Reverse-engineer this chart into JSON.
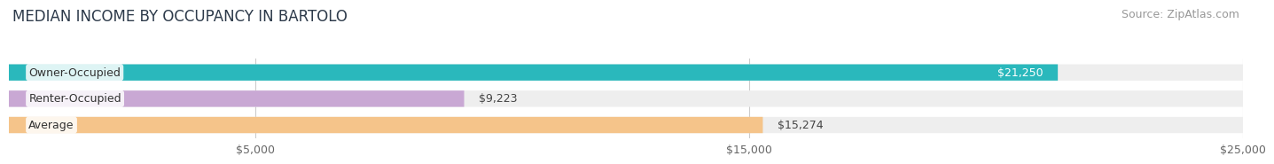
{
  "title": "MEDIAN INCOME BY OCCUPANCY IN BARTOLO",
  "source": "Source: ZipAtlas.com",
  "categories": [
    "Owner-Occupied",
    "Renter-Occupied",
    "Average"
  ],
  "values": [
    21250,
    9223,
    15274
  ],
  "bar_colors": [
    "#2ab8bc",
    "#c9a8d4",
    "#f5c48a"
  ],
  "bar_bg_color": "#eeeeee",
  "value_labels": [
    "$21,250",
    "$9,223",
    "$15,274"
  ],
  "value_label_inside": [
    true,
    false,
    false
  ],
  "xlim": [
    0,
    25000
  ],
  "xticks": [
    5000,
    15000,
    25000
  ],
  "xtick_labels": [
    "$5,000",
    "$15,000",
    "$25,000"
  ],
  "title_fontsize": 12,
  "source_fontsize": 9,
  "label_fontsize": 9,
  "value_fontsize": 9,
  "tick_fontsize": 9,
  "background_color": "#ffffff"
}
